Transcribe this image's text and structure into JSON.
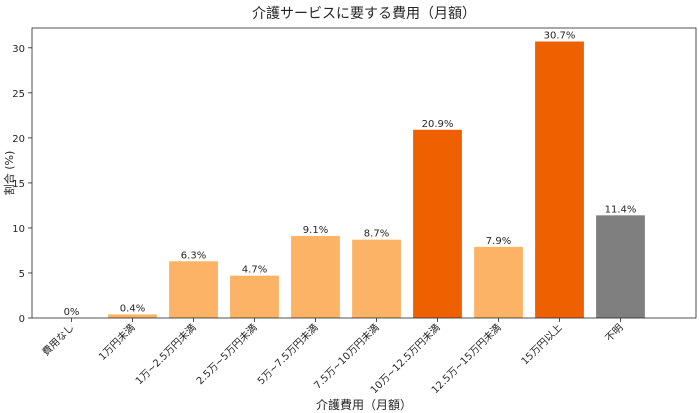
{
  "chart_data": {
    "type": "bar",
    "title": "介護サービスに要する費用（月額）",
    "xlabel": "介護費用（月額）",
    "ylabel": "割合 (%)",
    "ylim": [
      0,
      32.2
    ],
    "yticks": [
      0,
      5,
      10,
      15,
      20,
      25,
      30
    ],
    "grid": false,
    "categories": [
      "費用なし",
      "1万円未満",
      "1万~2.5万円未満",
      "2.5万~5万円未満",
      "5万~7.5万円未満",
      "7.5万~10万円未満",
      "10万~12.5万円未満",
      "12.5万~15万円未満",
      "15万円以上",
      "不明"
    ],
    "values": [
      0,
      0.4,
      6.3,
      4.7,
      9.1,
      8.7,
      20.9,
      7.9,
      30.7,
      11.4
    ],
    "data_labels": [
      "0%",
      "0.4%",
      "6.3%",
      "4.7%",
      "9.1%",
      "8.7%",
      "20.9%",
      "7.9%",
      "30.7%",
      "11.4%"
    ],
    "colors": [
      "#fdb366",
      "#fdb366",
      "#fdb366",
      "#fdb366",
      "#fdb366",
      "#fdb366",
      "#ee6000",
      "#fdb366",
      "#ee6000",
      "#7f7f7f"
    ]
  }
}
